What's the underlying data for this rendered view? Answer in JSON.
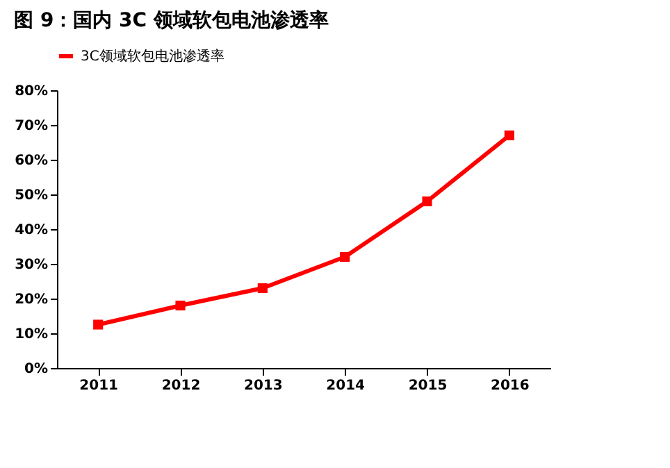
{
  "chart_data": {
    "type": "line",
    "title": "图 9：国内 3C 领域软包电池渗透率",
    "categories": [
      "2011",
      "2012",
      "2013",
      "2014",
      "2015",
      "2016"
    ],
    "series": [
      {
        "name": "3C领域软包电池渗透率",
        "color": "#ff0000",
        "values": [
          12.5,
          18,
          23,
          32,
          48,
          67
        ]
      }
    ],
    "ylim": [
      0,
      80
    ],
    "yticks": [
      {
        "value": 0,
        "label": "0%"
      },
      {
        "value": 10,
        "label": "10%"
      },
      {
        "value": 20,
        "label": "20%"
      },
      {
        "value": 30,
        "label": "30%"
      },
      {
        "value": 40,
        "label": "40%"
      },
      {
        "value": 50,
        "label": "50%"
      },
      {
        "value": 60,
        "label": "60%"
      },
      {
        "value": 70,
        "label": "70%"
      },
      {
        "value": 80,
        "label": "80%"
      }
    ],
    "marker": "square",
    "line_style": "solid",
    "legend": "top",
    "grid": false
  }
}
